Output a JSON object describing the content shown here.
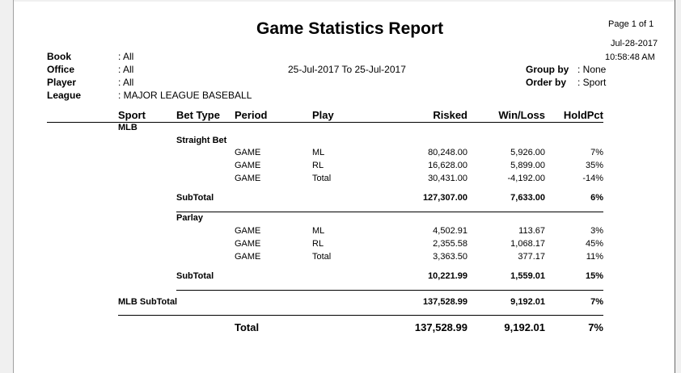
{
  "report": {
    "title": "Game Statistics Report",
    "page": "Page 1 of 1",
    "date": "Jul-28-2017",
    "time": "10:58:48 AM",
    "date_range": "25-Jul-2017  To  25-Jul-2017"
  },
  "filters": {
    "book_label": "Book",
    "book_value": ": All",
    "office_label": "Office",
    "office_value": ": All",
    "player_label": "Player",
    "player_value": ": All",
    "league_label": "League",
    "league_value": ": MAJOR LEAGUE BASEBALL",
    "groupby_label": "Group by",
    "groupby_value": ": None",
    "orderby_label": "Order by",
    "orderby_value": ": Sport"
  },
  "columns": {
    "sport": "Sport",
    "bet_type": "Bet Type",
    "period": "Period",
    "play": "Play",
    "risked": "Risked",
    "winloss": "Win/Loss",
    "holdpct": "HoldPct"
  },
  "sport_name": "MLB",
  "straight": {
    "label": "Straight Bet",
    "rows": [
      {
        "period": "GAME",
        "play": "ML",
        "risked": "80,248.00",
        "winloss": "5,926.00",
        "holdpct": "7%"
      },
      {
        "period": "GAME",
        "play": "RL",
        "risked": "16,628.00",
        "winloss": "5,899.00",
        "holdpct": "35%"
      },
      {
        "period": "GAME",
        "play": "Total",
        "risked": "30,431.00",
        "winloss": "-4,192.00",
        "holdpct": "-14%"
      }
    ],
    "subtotal": {
      "label": "SubTotal",
      "risked": "127,307.00",
      "winloss": "7,633.00",
      "holdpct": "6%"
    }
  },
  "parlay": {
    "label": "Parlay",
    "rows": [
      {
        "period": "GAME",
        "play": "ML",
        "risked": "4,502.91",
        "winloss": "113.67",
        "holdpct": "3%"
      },
      {
        "period": "GAME",
        "play": "RL",
        "risked": "2,355.58",
        "winloss": "1,068.17",
        "holdpct": "45%"
      },
      {
        "period": "GAME",
        "play": "Total",
        "risked": "3,363.50",
        "winloss": "377.17",
        "holdpct": "11%"
      }
    ],
    "subtotal": {
      "label": "SubTotal",
      "risked": "10,221.99",
      "winloss": "1,559.01",
      "holdpct": "15%"
    }
  },
  "sport_subtotal": {
    "label": "MLB  SubTotal",
    "risked": "137,528.99",
    "winloss": "9,192.01",
    "holdpct": "7%"
  },
  "total": {
    "label": "Total",
    "risked": "137,528.99",
    "winloss": "9,192.01",
    "holdpct": "7%"
  }
}
